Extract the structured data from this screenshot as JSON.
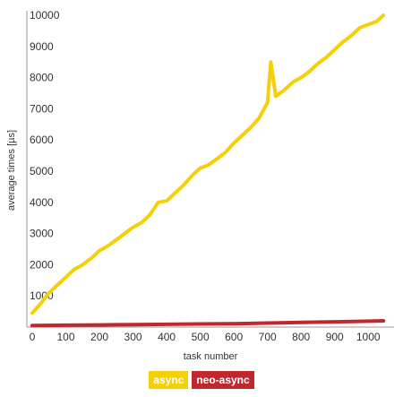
{
  "chart_data": {
    "type": "line",
    "title": "",
    "xlabel": "task number",
    "ylabel": "average times [µs]",
    "xlim": [
      0,
      1050
    ],
    "ylim": [
      0,
      10000
    ],
    "xticks": [
      0,
      100,
      200,
      300,
      400,
      500,
      600,
      700,
      800,
      900,
      1000
    ],
    "yticks": [
      1000,
      2000,
      3000,
      4000,
      5000,
      6000,
      7000,
      8000,
      9000,
      10000
    ],
    "legend_position": "bottom",
    "series": [
      {
        "name": "async",
        "color": "#f5cf07",
        "x": [
          0,
          25,
          50,
          75,
          100,
          125,
          150,
          175,
          200,
          225,
          250,
          275,
          300,
          325,
          350,
          375,
          400,
          425,
          450,
          475,
          500,
          525,
          550,
          575,
          600,
          625,
          650,
          675,
          690,
          700,
          710,
          725,
          750,
          775,
          800,
          825,
          850,
          875,
          900,
          925,
          950,
          975,
          1000,
          1025,
          1045
        ],
        "values": [
          450,
          750,
          1100,
          1350,
          1600,
          1850,
          2000,
          2200,
          2450,
          2600,
          2800,
          3000,
          3200,
          3350,
          3600,
          4000,
          4050,
          4300,
          4550,
          4850,
          5100,
          5200,
          5400,
          5600,
          5900,
          6150,
          6400,
          6700,
          7000,
          7200,
          8500,
          7400,
          7600,
          7850,
          8000,
          8200,
          8450,
          8650,
          8900,
          9150,
          9350,
          9600,
          9700,
          9800,
          10000
        ]
      },
      {
        "name": "neo-async",
        "color": "#c1282d",
        "x": [
          0,
          100,
          200,
          300,
          400,
          500,
          600,
          700,
          800,
          900,
          1000,
          1045
        ],
        "values": [
          50,
          60,
          70,
          80,
          90,
          100,
          110,
          130,
          150,
          170,
          190,
          200
        ]
      }
    ]
  }
}
